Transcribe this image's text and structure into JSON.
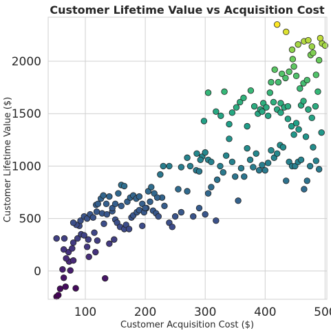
{
  "chart_data": {
    "type": "scatter",
    "title": "Customer Lifetime Value vs Acquisition Cost",
    "xlabel": "Customer Acquisition Cost ($)",
    "ylabel": "Customer Lifetime Value ($)",
    "xlim": [
      38,
      503
    ],
    "ylim": [
      -270,
      2420
    ],
    "xticks": [
      100,
      200,
      300,
      400,
      500
    ],
    "yticks": [
      0,
      500,
      1000,
      1500,
      2000
    ],
    "grid": true,
    "colormap": "viridis",
    "colors": {
      "grid": "#cfcfcf",
      "text": "#262626",
      "marker_edge": "#222222"
    },
    "points": [
      [
        52,
        -245
      ],
      [
        58,
        -170
      ],
      [
        55,
        -230
      ],
      [
        67,
        -150
      ],
      [
        84,
        -165
      ],
      [
        64,
        -65
      ],
      [
        75,
        5
      ],
      [
        62,
        15
      ],
      [
        73,
        90
      ],
      [
        68,
        120
      ],
      [
        80,
        100
      ],
      [
        72,
        180
      ],
      [
        64,
        205
      ],
      [
        78,
        215
      ],
      [
        80,
        270
      ],
      [
        52,
        310
      ],
      [
        65,
        310
      ],
      [
        87,
        310
      ],
      [
        93,
        350
      ],
      [
        98,
        340
      ],
      [
        103,
        230
      ],
      [
        106,
        135
      ],
      [
        117,
        180
      ],
      [
        115,
        365
      ],
      [
        105,
        300
      ],
      [
        120,
        290
      ],
      [
        133,
        -70
      ],
      [
        140,
        260
      ],
      [
        148,
        300
      ],
      [
        131,
        450
      ],
      [
        90,
        430
      ],
      [
        85,
        440
      ],
      [
        80,
        460
      ],
      [
        92,
        480
      ],
      [
        98,
        520
      ],
      [
        103,
        500
      ],
      [
        108,
        540
      ],
      [
        113,
        510
      ],
      [
        119,
        565
      ],
      [
        128,
        550
      ],
      [
        136,
        540
      ],
      [
        145,
        570
      ],
      [
        150,
        490
      ],
      [
        153,
        460
      ],
      [
        158,
        420
      ],
      [
        160,
        620
      ],
      [
        165,
        400
      ],
      [
        168,
        440
      ],
      [
        173,
        400
      ],
      [
        177,
        510
      ],
      [
        180,
        530
      ],
      [
        186,
        560
      ],
      [
        190,
        580
      ],
      [
        195,
        430
      ],
      [
        198,
        560
      ],
      [
        202,
        600
      ],
      [
        208,
        660
      ],
      [
        213,
        575
      ],
      [
        218,
        550
      ],
      [
        222,
        520
      ],
      [
        228,
        700
      ],
      [
        232,
        620
      ],
      [
        240,
        460
      ],
      [
        245,
        420
      ],
      [
        250,
        520
      ],
      [
        255,
        780
      ],
      [
        260,
        560
      ],
      [
        270,
        760
      ],
      [
        280,
        520
      ],
      [
        290,
        600
      ],
      [
        300,
        540
      ],
      [
        318,
        480
      ],
      [
        305,
        740
      ],
      [
        310,
        800
      ],
      [
        118,
        630
      ],
      [
        121,
        640
      ],
      [
        126,
        690
      ],
      [
        130,
        720
      ],
      [
        135,
        640
      ],
      [
        140,
        710
      ],
      [
        145,
        600
      ],
      [
        150,
        640
      ],
      [
        155,
        740
      ],
      [
        160,
        820
      ],
      [
        165,
        810
      ],
      [
        170,
        660
      ],
      [
        175,
        700
      ],
      [
        180,
        720
      ],
      [
        185,
        690
      ],
      [
        190,
        710
      ],
      [
        195,
        640
      ],
      [
        200,
        600
      ],
      [
        205,
        760
      ],
      [
        210,
        800
      ],
      [
        215,
        740
      ],
      [
        220,
        700
      ],
      [
        225,
        920
      ],
      [
        230,
        1000
      ],
      [
        240,
        1000
      ],
      [
        260,
        990
      ],
      [
        270,
        1080
      ],
      [
        275,
        1000
      ],
      [
        285,
        960
      ],
      [
        290,
        950
      ],
      [
        295,
        1090
      ],
      [
        300,
        1130
      ],
      [
        305,
        1060
      ],
      [
        310,
        1040
      ],
      [
        320,
        870
      ],
      [
        325,
        1000
      ],
      [
        330,
        940
      ],
      [
        335,
        1100
      ],
      [
        340,
        1260
      ],
      [
        345,
        1040
      ],
      [
        350,
        900
      ],
      [
        355,
        670
      ],
      [
        360,
        980
      ],
      [
        365,
        900
      ],
      [
        370,
        1170
      ],
      [
        375,
        1060
      ],
      [
        380,
        990
      ],
      [
        385,
        1120
      ],
      [
        390,
        960
      ],
      [
        395,
        1010
      ],
      [
        400,
        960
      ],
      [
        405,
        1030
      ],
      [
        410,
        1150
      ],
      [
        415,
        1080
      ],
      [
        420,
        1120
      ],
      [
        425,
        1200
      ],
      [
        430,
        1180
      ],
      [
        435,
        860
      ],
      [
        440,
        1040
      ],
      [
        445,
        1000
      ],
      [
        450,
        1000
      ],
      [
        455,
        1040
      ],
      [
        460,
        1060
      ],
      [
        465,
        780
      ],
      [
        470,
        860
      ],
      [
        475,
        1000
      ],
      [
        480,
        1180
      ],
      [
        485,
        1050
      ],
      [
        490,
        970
      ],
      [
        494,
        1320
      ],
      [
        286,
        1120
      ],
      [
        292,
        1060
      ],
      [
        298,
        1430
      ],
      [
        305,
        1700
      ],
      [
        318,
        1520
      ],
      [
        326,
        1480
      ],
      [
        332,
        1710
      ],
      [
        340,
        1400
      ],
      [
        345,
        1510
      ],
      [
        352,
        1560
      ],
      [
        358,
        1610
      ],
      [
        364,
        1650
      ],
      [
        370,
        1380
      ],
      [
        376,
        1720
      ],
      [
        382,
        1570
      ],
      [
        388,
        1500
      ],
      [
        392,
        1540
      ],
      [
        397,
        1600
      ],
      [
        402,
        1560
      ],
      [
        408,
        1700
      ],
      [
        414,
        1610
      ],
      [
        420,
        1540
      ],
      [
        426,
        1600
      ],
      [
        432,
        1560
      ],
      [
        438,
        1450
      ],
      [
        444,
        1380
      ],
      [
        448,
        1300
      ],
      [
        452,
        1410
      ],
      [
        456,
        1350
      ],
      [
        460,
        1580
      ],
      [
        464,
        1620
      ],
      [
        468,
        1280
      ],
      [
        472,
        1540
      ],
      [
        478,
        1460
      ],
      [
        484,
        1570
      ],
      [
        488,
        1710
      ],
      [
        395,
        1520
      ],
      [
        405,
        1480
      ],
      [
        410,
        1800
      ],
      [
        416,
        1920
      ],
      [
        422,
        1800
      ],
      [
        428,
        1880
      ],
      [
        434,
        1840
      ],
      [
        440,
        1900
      ],
      [
        446,
        2020
      ],
      [
        452,
        1860
      ],
      [
        458,
        1740
      ],
      [
        464,
        1790
      ],
      [
        470,
        1820
      ],
      [
        476,
        2060
      ],
      [
        480,
        2080
      ],
      [
        485,
        1870
      ],
      [
        490,
        2010
      ],
      [
        495,
        2170
      ],
      [
        492,
        2220
      ],
      [
        500,
        2150
      ],
      [
        420,
        2350
      ],
      [
        435,
        2280
      ],
      [
        445,
        2110
      ],
      [
        455,
        2160
      ],
      [
        465,
        2190
      ],
      [
        472,
        2200
      ],
      [
        478,
        2140
      ],
      [
        448,
        1950
      ],
      [
        438,
        1570
      ],
      [
        426,
        1510
      ]
    ]
  }
}
